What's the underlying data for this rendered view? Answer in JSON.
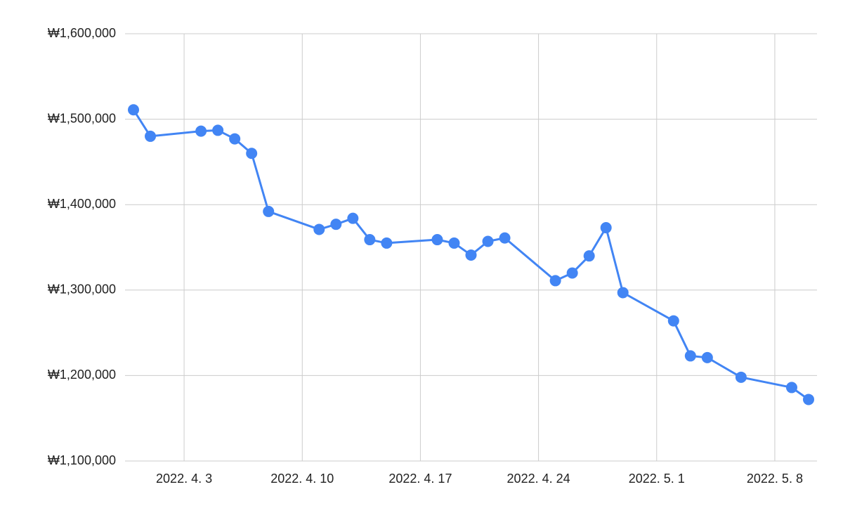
{
  "chart_data": {
    "type": "line",
    "x": [
      "2022-03-31",
      "2022-04-01",
      "2022-04-04",
      "2022-04-05",
      "2022-04-06",
      "2022-04-07",
      "2022-04-08",
      "2022-04-11",
      "2022-04-12",
      "2022-04-13",
      "2022-04-14",
      "2022-04-15",
      "2022-04-18",
      "2022-04-19",
      "2022-04-20",
      "2022-04-21",
      "2022-04-22",
      "2022-04-25",
      "2022-04-26",
      "2022-04-27",
      "2022-04-28",
      "2022-04-29",
      "2022-05-02",
      "2022-05-03",
      "2022-05-04",
      "2022-05-06",
      "2022-05-09",
      "2022-05-10"
    ],
    "values": [
      1511000,
      1480000,
      1486000,
      1487000,
      1477000,
      1460000,
      1392000,
      1371000,
      1377000,
      1384000,
      1359000,
      1355000,
      1359000,
      1355000,
      1341000,
      1357000,
      1361000,
      1311000,
      1320000,
      1340000,
      1373000,
      1297000,
      1264000,
      1223000,
      1221000,
      1198000,
      1186000,
      1172000
    ],
    "color": "#4285f4",
    "xlim": [
      "2022-03-30T12:00",
      "2022-05-10T12:00"
    ],
    "xticks": [
      {
        "value": "2022-04-03",
        "label": "2022. 4. 3"
      },
      {
        "value": "2022-04-10",
        "label": "2022. 4. 10"
      },
      {
        "value": "2022-04-17",
        "label": "2022. 4. 17"
      },
      {
        "value": "2022-04-24",
        "label": "2022. 4. 24"
      },
      {
        "value": "2022-05-01",
        "label": "2022. 5. 1"
      },
      {
        "value": "2022-05-08",
        "label": "2022. 5. 8"
      }
    ],
    "ylim": [
      1100000,
      1600000
    ],
    "yticks": [
      {
        "value": 1100000,
        "label": "₩1,100,000"
      },
      {
        "value": 1200000,
        "label": "₩1,200,000"
      },
      {
        "value": 1300000,
        "label": "₩1,300,000"
      },
      {
        "value": 1400000,
        "label": "₩1,400,000"
      },
      {
        "value": 1500000,
        "label": "₩1,500,000"
      },
      {
        "value": 1600000,
        "label": "₩1,600,000"
      }
    ],
    "grid": true
  }
}
